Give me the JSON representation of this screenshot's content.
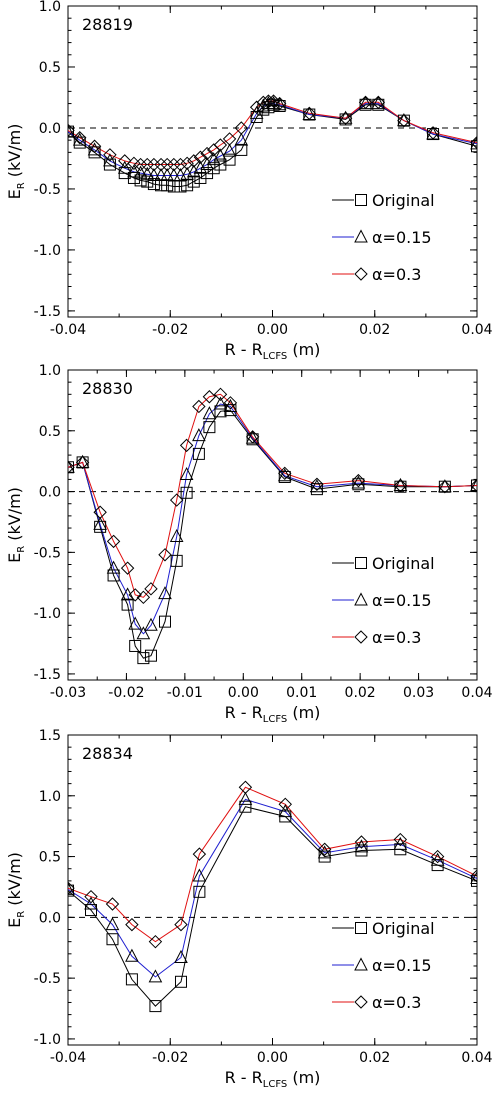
{
  "colors": {
    "original": "#000000",
    "a015": "#1f1fd0",
    "a03": "#e01010",
    "axis": "#000000",
    "zero": "#000000"
  },
  "chart_data": [
    {
      "type": "line",
      "title": "28819",
      "xlabel_main": "R - R",
      "xlabel_sub": "LCFS",
      "xlabel_unit": " (m)",
      "ylabel_main": "E",
      "ylabel_sub": "R",
      "ylabel_unit": " (kV/m)",
      "xlim": [
        -0.04,
        0.04
      ],
      "ylim": [
        -1.55,
        1.0
      ],
      "xticks": [
        -0.04,
        -0.02,
        0.0,
        0.02,
        0.04
      ],
      "xtick_labels": [
        "-0.04",
        "-0.02",
        "0.00",
        "0.02",
        "0.04"
      ],
      "yticks": [
        -1.5,
        -1.0,
        -0.5,
        0.0,
        0.5,
        1.0
      ],
      "ytick_labels": [
        "-1.5",
        "-1.0",
        "-0.5",
        "0.0",
        "0.5",
        "1.0"
      ],
      "zero_line": true,
      "legend_position": "lower-right",
      "series": [
        {
          "name": "Original",
          "marker": "square",
          "x": [
            -0.04,
            -0.0377,
            -0.0348,
            -0.0318,
            -0.0289,
            -0.0271,
            -0.0258,
            -0.0245,
            -0.0232,
            -0.0218,
            -0.0206,
            -0.0193,
            -0.018,
            -0.0167,
            -0.0154,
            -0.0141,
            -0.0128,
            -0.0115,
            -0.0102,
            -0.0084,
            -0.0061,
            -0.0031,
            -0.0018,
            -0.0008,
            0.0002,
            0.0014,
            0.0072,
            0.0143,
            0.0182,
            0.0207,
            0.0257,
            0.0314,
            0.04
          ],
          "y": [
            -0.03,
            -0.12,
            -0.2,
            -0.3,
            -0.37,
            -0.41,
            -0.43,
            -0.44,
            -0.46,
            -0.47,
            -0.47,
            -0.48,
            -0.48,
            -0.47,
            -0.44,
            -0.41,
            -0.37,
            -0.33,
            -0.3,
            -0.26,
            -0.18,
            0.09,
            0.15,
            0.17,
            0.19,
            0.18,
            0.11,
            0.07,
            0.19,
            0.19,
            0.06,
            -0.05,
            -0.15
          ]
        },
        {
          "name": "α=0.15",
          "marker": "triangle",
          "x": [
            -0.04,
            -0.0377,
            -0.0348,
            -0.0318,
            -0.0289,
            -0.0271,
            -0.0258,
            -0.0245,
            -0.0232,
            -0.0218,
            -0.0206,
            -0.0193,
            -0.018,
            -0.0167,
            -0.0154,
            -0.0141,
            -0.0128,
            -0.0115,
            -0.0102,
            -0.0084,
            -0.0061,
            -0.0031,
            -0.0018,
            -0.0008,
            0.0002,
            0.0014,
            0.0072,
            0.0143,
            0.0182,
            0.0207,
            0.0257,
            0.0314,
            0.04
          ],
          "y": [
            -0.03,
            -0.1,
            -0.18,
            -0.27,
            -0.33,
            -0.36,
            -0.37,
            -0.38,
            -0.39,
            -0.39,
            -0.39,
            -0.39,
            -0.39,
            -0.38,
            -0.36,
            -0.33,
            -0.3,
            -0.26,
            -0.23,
            -0.19,
            -0.1,
            0.12,
            0.18,
            0.2,
            0.2,
            0.19,
            0.11,
            0.08,
            0.2,
            0.2,
            0.06,
            -0.05,
            -0.13
          ]
        },
        {
          "name": "α=0.3",
          "marker": "diamond",
          "x": [
            -0.04,
            -0.0377,
            -0.0348,
            -0.0318,
            -0.0289,
            -0.0271,
            -0.0258,
            -0.0245,
            -0.0232,
            -0.0218,
            -0.0206,
            -0.0193,
            -0.018,
            -0.0167,
            -0.0154,
            -0.0141,
            -0.0128,
            -0.0115,
            -0.0102,
            -0.0084,
            -0.0061,
            -0.0031,
            -0.0018,
            -0.0008,
            0.0002,
            0.0014,
            0.0072,
            0.0143,
            0.0182,
            0.0207,
            0.0257,
            0.0314,
            0.04
          ],
          "y": [
            -0.02,
            -0.08,
            -0.15,
            -0.22,
            -0.27,
            -0.29,
            -0.3,
            -0.3,
            -0.3,
            -0.3,
            -0.3,
            -0.3,
            -0.3,
            -0.29,
            -0.27,
            -0.24,
            -0.21,
            -0.18,
            -0.14,
            -0.09,
            0.0,
            0.17,
            0.21,
            0.22,
            0.22,
            0.2,
            0.12,
            0.08,
            0.21,
            0.21,
            0.06,
            -0.04,
            -0.12
          ]
        }
      ]
    },
    {
      "type": "line",
      "title": "28830",
      "xlabel_main": "R - R",
      "xlabel_sub": "LCFS",
      "xlabel_unit": " (m)",
      "ylabel_main": "E",
      "ylabel_sub": "R",
      "ylabel_unit": " (kV/m)",
      "xlim": [
        -0.03,
        0.04
      ],
      "ylim": [
        -1.55,
        1.0
      ],
      "xticks": [
        -0.03,
        -0.02,
        -0.01,
        0.0,
        0.01,
        0.02,
        0.03,
        0.04
      ],
      "xtick_labels": [
        "-0.03",
        "-0.02",
        "-0.01",
        "0.00",
        "0.01",
        "0.02",
        "0.03",
        "0.04"
      ],
      "yticks": [
        -1.5,
        -1.0,
        -0.5,
        0.0,
        0.5,
        1.0
      ],
      "ytick_labels": [
        "-1.5",
        "-1.0",
        "-0.5",
        "0.0",
        "0.5",
        "1.0"
      ],
      "zero_line": true,
      "legend_position": "lower-right",
      "series": [
        {
          "name": "Original",
          "marker": "square",
          "x": [
            -0.03,
            -0.0275,
            -0.0245,
            -0.0222,
            -0.0198,
            -0.0185,
            -0.0171,
            -0.0158,
            -0.0134,
            -0.0114,
            -0.0097,
            -0.0076,
            -0.0058,
            -0.0039,
            -0.0022,
            0.0016,
            0.0071,
            0.0126,
            0.0197,
            0.0269,
            0.0345,
            0.04
          ],
          "y": [
            0.2,
            0.24,
            -0.29,
            -0.69,
            -0.93,
            -1.27,
            -1.37,
            -1.35,
            -1.07,
            -0.57,
            -0.01,
            0.31,
            0.53,
            0.66,
            0.67,
            0.43,
            0.12,
            0.02,
            0.06,
            0.04,
            0.04,
            0.05
          ]
        },
        {
          "name": "α=0.15",
          "marker": "triangle",
          "x": [
            -0.03,
            -0.0275,
            -0.0245,
            -0.0222,
            -0.0198,
            -0.0185,
            -0.0171,
            -0.0158,
            -0.0134,
            -0.0114,
            -0.0097,
            -0.0076,
            -0.0058,
            -0.0039,
            -0.0022,
            0.0016,
            0.0071,
            0.0126,
            0.0197,
            0.0269,
            0.0345,
            0.04
          ],
          "y": [
            0.2,
            0.24,
            -0.27,
            -0.63,
            -0.85,
            -1.09,
            -1.17,
            -1.1,
            -0.84,
            -0.37,
            0.14,
            0.46,
            0.64,
            0.72,
            0.7,
            0.44,
            0.13,
            0.04,
            0.07,
            0.05,
            0.04,
            0.05
          ]
        },
        {
          "name": "α=0.3",
          "marker": "diamond",
          "x": [
            -0.03,
            -0.0275,
            -0.0245,
            -0.0222,
            -0.0198,
            -0.0185,
            -0.0171,
            -0.0158,
            -0.0134,
            -0.0114,
            -0.0097,
            -0.0076,
            -0.0058,
            -0.0039,
            -0.0022,
            0.0016,
            0.0071,
            0.0126,
            0.0197,
            0.0269,
            0.0345,
            0.04
          ],
          "y": [
            0.2,
            0.24,
            -0.17,
            -0.41,
            -0.63,
            -0.85,
            -0.87,
            -0.8,
            -0.52,
            -0.07,
            0.38,
            0.7,
            0.78,
            0.8,
            0.73,
            0.45,
            0.15,
            0.06,
            0.09,
            0.05,
            0.04,
            0.05
          ]
        }
      ]
    },
    {
      "type": "line",
      "title": "28834",
      "xlabel_main": "R - R",
      "xlabel_sub": "LCFS",
      "xlabel_unit": " (m)",
      "ylabel_main": "E",
      "ylabel_sub": "R",
      "ylabel_unit": " (kV/m)",
      "xlim": [
        -0.04,
        0.04
      ],
      "ylim": [
        -1.05,
        1.5
      ],
      "xticks": [
        -0.04,
        -0.02,
        0.0,
        0.02,
        0.04
      ],
      "xtick_labels": [
        "-0.04",
        "-0.02",
        "0.00",
        "0.02",
        "0.04"
      ],
      "yticks": [
        -1.0,
        -0.5,
        0.0,
        0.5,
        1.0,
        1.5
      ],
      "ytick_labels": [
        "-1.0",
        "-0.5",
        "0.0",
        "0.5",
        "1.0",
        "1.5"
      ],
      "zero_line": true,
      "legend_position": "lower-right",
      "series": [
        {
          "name": "Original",
          "marker": "square",
          "x": [
            -0.04,
            -0.0355,
            -0.0313,
            -0.0275,
            -0.0229,
            -0.0179,
            -0.0143,
            -0.0053,
            0.0025,
            0.0102,
            0.0174,
            0.025,
            0.0323,
            0.04
          ],
          "y": [
            0.22,
            0.06,
            -0.18,
            -0.51,
            -0.73,
            -0.53,
            0.21,
            0.91,
            0.83,
            0.5,
            0.55,
            0.56,
            0.43,
            0.3
          ]
        },
        {
          "name": "α=0.15",
          "marker": "triangle",
          "x": [
            -0.04,
            -0.0355,
            -0.0313,
            -0.0275,
            -0.0229,
            -0.0179,
            -0.0143,
            -0.0053,
            0.0025,
            0.0102,
            0.0174,
            0.025,
            0.0323,
            0.04
          ],
          "y": [
            0.23,
            0.11,
            -0.06,
            -0.32,
            -0.49,
            -0.33,
            0.34,
            0.97,
            0.87,
            0.53,
            0.58,
            0.6,
            0.47,
            0.32
          ]
        },
        {
          "name": "α=0.3",
          "marker": "diamond",
          "x": [
            -0.04,
            -0.0355,
            -0.0313,
            -0.0275,
            -0.0229,
            -0.0179,
            -0.0143,
            -0.0053,
            0.0025,
            0.0102,
            0.0174,
            0.025,
            0.0323,
            0.04
          ],
          "y": [
            0.24,
            0.17,
            0.11,
            -0.06,
            -0.2,
            -0.06,
            0.52,
            1.07,
            0.93,
            0.56,
            0.62,
            0.64,
            0.5,
            0.34
          ]
        }
      ]
    }
  ]
}
